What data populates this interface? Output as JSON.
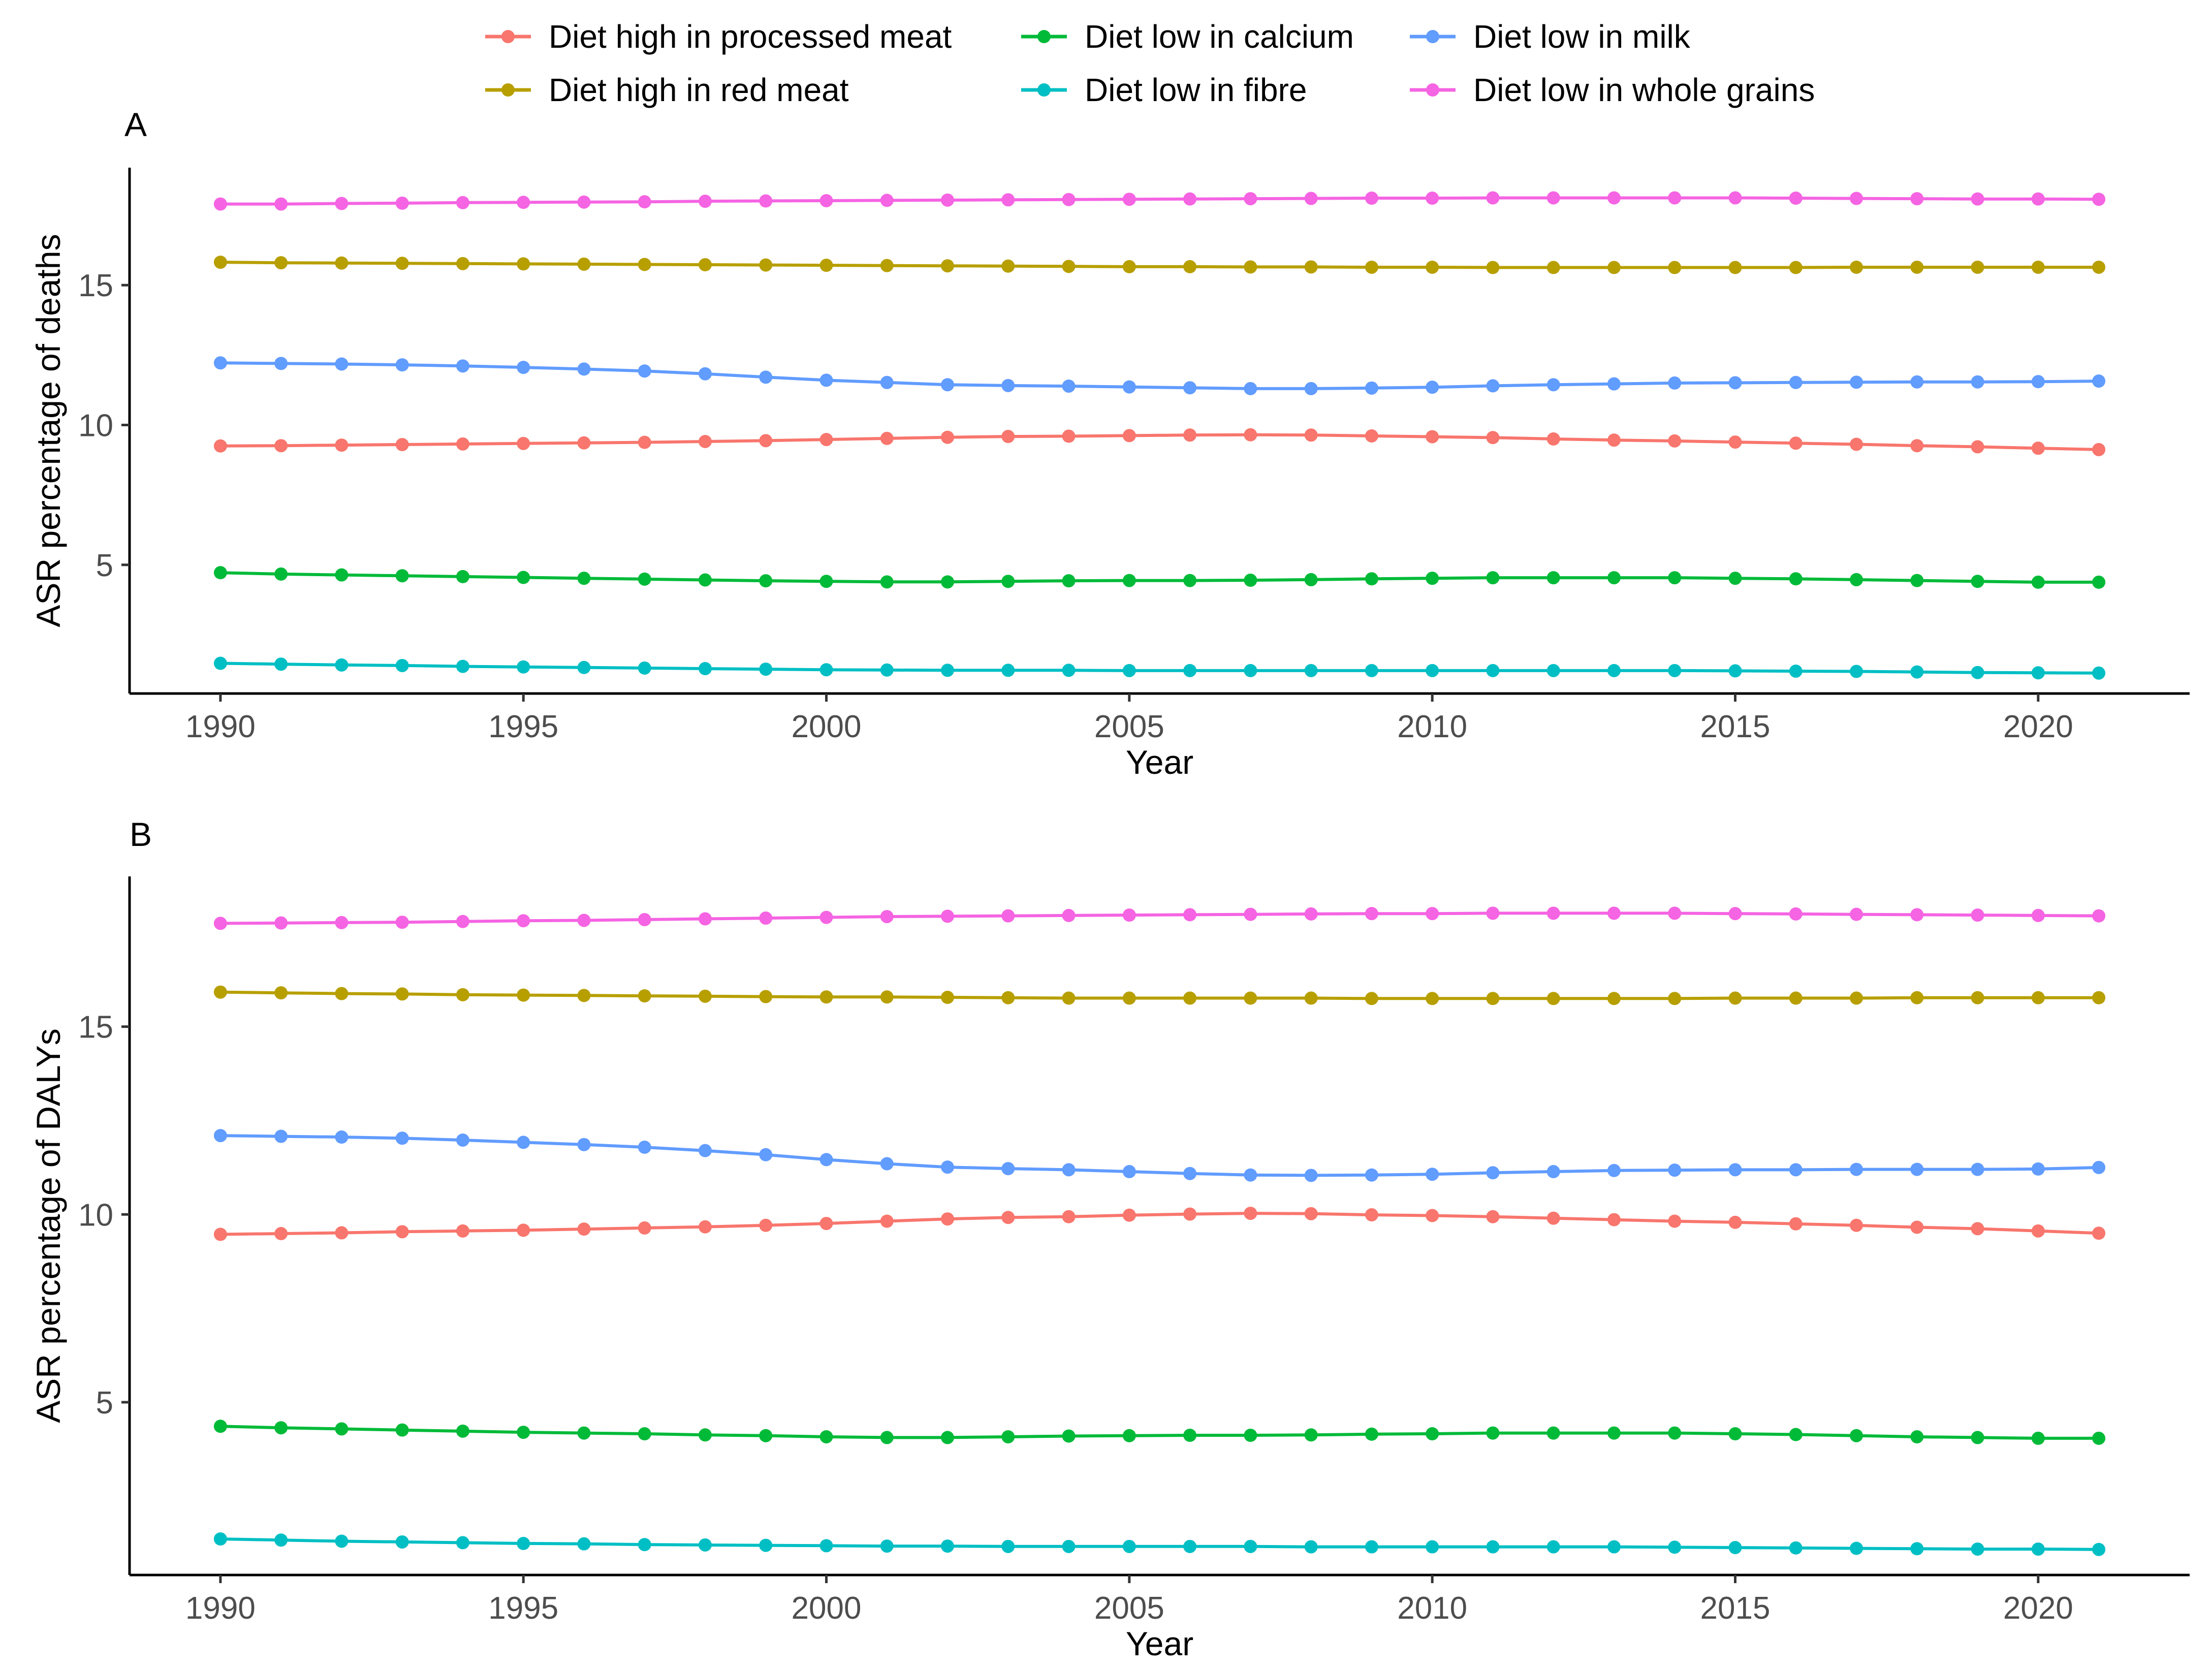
{
  "legend": {
    "items": [
      {
        "name": "Diet high in processed meat",
        "color": "#F8766D"
      },
      {
        "name": "Diet high in red meat",
        "color": "#B79F00"
      },
      {
        "name": "Diet low in calcium",
        "color": "#00BA38"
      },
      {
        "name": "Diet low in fibre",
        "color": "#00BFC4"
      },
      {
        "name": "Diet low in milk",
        "color": "#619CFF"
      },
      {
        "name": "Diet low in whole grains",
        "color": "#F564E3"
      }
    ]
  },
  "chart_data": [
    {
      "type": "line",
      "panel": "A",
      "title": "",
      "xlabel": "Year",
      "ylabel": "ASR percentage of deaths",
      "xlim": [
        1988.5,
        2022.5
      ],
      "ylim": [
        0.4,
        19.2
      ],
      "xticks": [
        1990,
        1995,
        2000,
        2005,
        2010,
        2015,
        2020
      ],
      "yticks": [
        5,
        10,
        15
      ],
      "grid": false,
      "x": [
        1990,
        1991,
        1992,
        1993,
        1994,
        1995,
        1996,
        1997,
        1998,
        1999,
        2000,
        2001,
        2002,
        2003,
        2004,
        2005,
        2006,
        2007,
        2008,
        2009,
        2010,
        2011,
        2012,
        2013,
        2014,
        2015,
        2016,
        2017,
        2018,
        2019,
        2020,
        2021
      ],
      "series": [
        {
          "name": "Diet low in whole grains",
          "values": [
            17.9,
            17.9,
            17.92,
            17.93,
            17.95,
            17.96,
            17.97,
            17.98,
            18.0,
            18.01,
            18.02,
            18.03,
            18.04,
            18.05,
            18.06,
            18.07,
            18.08,
            18.09,
            18.1,
            18.11,
            18.11,
            18.12,
            18.12,
            18.12,
            18.12,
            18.12,
            18.11,
            18.1,
            18.09,
            18.08,
            18.08,
            18.07
          ]
        },
        {
          "name": "Diet high in red meat",
          "values": [
            15.82,
            15.8,
            15.79,
            15.78,
            15.77,
            15.76,
            15.75,
            15.74,
            15.73,
            15.72,
            15.71,
            15.7,
            15.69,
            15.68,
            15.67,
            15.66,
            15.66,
            15.65,
            15.65,
            15.64,
            15.64,
            15.63,
            15.63,
            15.63,
            15.63,
            15.63,
            15.63,
            15.64,
            15.64,
            15.64,
            15.64,
            15.64
          ]
        },
        {
          "name": "Diet low in milk",
          "values": [
            12.22,
            12.2,
            12.18,
            12.15,
            12.11,
            12.06,
            12.0,
            11.93,
            11.83,
            11.71,
            11.6,
            11.52,
            11.44,
            11.41,
            11.39,
            11.36,
            11.33,
            11.3,
            11.3,
            11.32,
            11.35,
            11.4,
            11.44,
            11.47,
            11.5,
            11.51,
            11.52,
            11.53,
            11.54,
            11.54,
            11.55,
            11.57
          ]
        },
        {
          "name": "Diet high in processed meat",
          "values": [
            9.25,
            9.26,
            9.28,
            9.3,
            9.32,
            9.34,
            9.36,
            9.38,
            9.41,
            9.44,
            9.48,
            9.52,
            9.56,
            9.59,
            9.6,
            9.62,
            9.64,
            9.65,
            9.64,
            9.61,
            9.58,
            9.55,
            9.5,
            9.46,
            9.43,
            9.39,
            9.35,
            9.31,
            9.26,
            9.22,
            9.17,
            9.12
          ]
        },
        {
          "name": "Diet low in calcium",
          "values": [
            4.72,
            4.67,
            4.64,
            4.61,
            4.58,
            4.55,
            4.52,
            4.49,
            4.46,
            4.43,
            4.41,
            4.39,
            4.39,
            4.41,
            4.43,
            4.44,
            4.44,
            4.45,
            4.47,
            4.5,
            4.52,
            4.54,
            4.54,
            4.54,
            4.54,
            4.52,
            4.5,
            4.47,
            4.44,
            4.41,
            4.38,
            4.38
          ]
        },
        {
          "name": "Diet low in fibre",
          "values": [
            1.48,
            1.45,
            1.42,
            1.4,
            1.37,
            1.35,
            1.33,
            1.31,
            1.29,
            1.27,
            1.25,
            1.24,
            1.23,
            1.23,
            1.23,
            1.22,
            1.22,
            1.22,
            1.22,
            1.22,
            1.22,
            1.22,
            1.22,
            1.22,
            1.22,
            1.21,
            1.2,
            1.19,
            1.17,
            1.15,
            1.14,
            1.13
          ]
        }
      ]
    },
    {
      "type": "line",
      "panel": "B",
      "title": "",
      "xlabel": "Year",
      "ylabel": "ASR percentage of DALYs",
      "xlim": [
        1988.5,
        2022.5
      ],
      "ylim": [
        0.4,
        19.0
      ],
      "xticks": [
        1990,
        1995,
        2000,
        2005,
        2010,
        2015,
        2020
      ],
      "yticks": [
        5,
        10,
        15
      ],
      "grid": false,
      "x": [
        1990,
        1991,
        1992,
        1993,
        1994,
        1995,
        1996,
        1997,
        1998,
        1999,
        2000,
        2001,
        2002,
        2003,
        2004,
        2005,
        2006,
        2007,
        2008,
        2009,
        2010,
        2011,
        2012,
        2013,
        2014,
        2015,
        2016,
        2017,
        2018,
        2019,
        2020,
        2021
      ],
      "series": [
        {
          "name": "Diet low in whole grains",
          "values": [
            17.75,
            17.76,
            17.77,
            17.78,
            17.8,
            17.82,
            17.83,
            17.85,
            17.87,
            17.89,
            17.91,
            17.93,
            17.94,
            17.95,
            17.96,
            17.97,
            17.98,
            17.99,
            18.0,
            18.01,
            18.01,
            18.02,
            18.02,
            18.02,
            18.02,
            18.01,
            18.0,
            17.99,
            17.98,
            17.97,
            17.96,
            17.95
          ]
        },
        {
          "name": "Diet high in red meat",
          "values": [
            15.92,
            15.9,
            15.88,
            15.87,
            15.85,
            15.84,
            15.83,
            15.82,
            15.81,
            15.8,
            15.79,
            15.79,
            15.78,
            15.77,
            15.76,
            15.76,
            15.76,
            15.76,
            15.76,
            15.75,
            15.75,
            15.75,
            15.75,
            15.75,
            15.75,
            15.76,
            15.76,
            15.76,
            15.77,
            15.77,
            15.77,
            15.77
          ]
        },
        {
          "name": "Diet low in milk",
          "values": [
            12.1,
            12.08,
            12.06,
            12.03,
            11.98,
            11.92,
            11.86,
            11.79,
            11.7,
            11.59,
            11.46,
            11.35,
            11.26,
            11.22,
            11.19,
            11.14,
            11.09,
            11.05,
            11.04,
            11.05,
            11.07,
            11.11,
            11.14,
            11.17,
            11.18,
            11.19,
            11.19,
            11.2,
            11.2,
            11.2,
            11.21,
            11.25
          ]
        },
        {
          "name": "Diet high in processed meat",
          "values": [
            9.47,
            9.49,
            9.51,
            9.54,
            9.56,
            9.58,
            9.61,
            9.64,
            9.67,
            9.71,
            9.76,
            9.82,
            9.88,
            9.92,
            9.94,
            9.98,
            10.01,
            10.03,
            10.02,
            9.99,
            9.97,
            9.94,
            9.9,
            9.86,
            9.82,
            9.79,
            9.75,
            9.71,
            9.66,
            9.62,
            9.56,
            9.5
          ]
        },
        {
          "name": "Diet low in calcium",
          "values": [
            4.36,
            4.32,
            4.29,
            4.26,
            4.23,
            4.2,
            4.18,
            4.16,
            4.13,
            4.11,
            4.08,
            4.06,
            4.06,
            4.08,
            4.1,
            4.11,
            4.12,
            4.12,
            4.13,
            4.15,
            4.16,
            4.18,
            4.18,
            4.18,
            4.18,
            4.16,
            4.14,
            4.11,
            4.08,
            4.06,
            4.04,
            4.04
          ]
        },
        {
          "name": "Diet low in fibre",
          "values": [
            1.36,
            1.33,
            1.3,
            1.28,
            1.26,
            1.24,
            1.23,
            1.21,
            1.2,
            1.19,
            1.18,
            1.17,
            1.17,
            1.16,
            1.16,
            1.16,
            1.16,
            1.16,
            1.15,
            1.15,
            1.15,
            1.15,
            1.15,
            1.15,
            1.14,
            1.13,
            1.12,
            1.11,
            1.1,
            1.09,
            1.09,
            1.08
          ]
        }
      ]
    }
  ]
}
